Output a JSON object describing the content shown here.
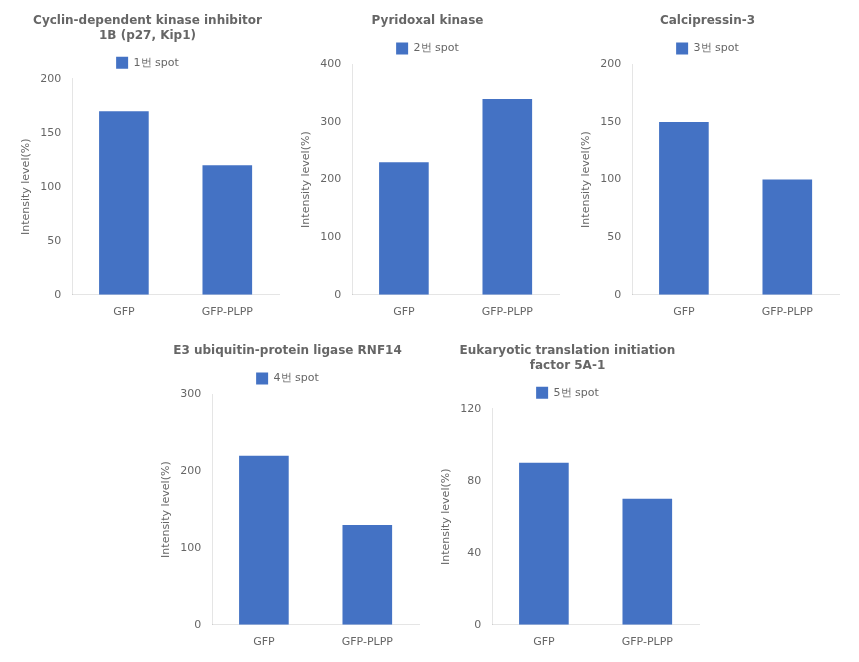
{
  "chart_data": [
    {
      "type": "bar",
      "title": "Cyclin-dependent kinase inhibitor\n1B (p27, Kip1)",
      "categories": [
        "GFP",
        "GFP-PLPP"
      ],
      "series": [
        {
          "name": "1번 spot",
          "color": "#4472c4",
          "values": [
            170,
            120
          ]
        }
      ],
      "ylabel": "Intensity level(%)",
      "ylim": [
        0,
        200
      ],
      "yticks": [
        0,
        50,
        100,
        150,
        200
      ],
      "grid": false,
      "legend": "top"
    },
    {
      "type": "bar",
      "title": "Pyridoxal kinase",
      "categories": [
        "GFP",
        "GFP-PLPP"
      ],
      "series": [
        {
          "name": "2번 spot",
          "color": "#4472c4",
          "values": [
            230,
            340
          ]
        }
      ],
      "ylabel": "Intensity level(%)",
      "ylim": [
        0,
        400
      ],
      "yticks": [
        0,
        100,
        200,
        300,
        400
      ],
      "grid": false,
      "legend": "top"
    },
    {
      "type": "bar",
      "title": "Calcipressin-3",
      "categories": [
        "GFP",
        "GFP-PLPP"
      ],
      "series": [
        {
          "name": "3번 spot",
          "color": "#4472c4",
          "values": [
            150,
            100
          ]
        }
      ],
      "ylabel": "Intensity level(%)",
      "ylim": [
        0,
        200
      ],
      "yticks": [
        0,
        50,
        100,
        150,
        200
      ],
      "grid": false,
      "legend": "top"
    },
    {
      "type": "bar",
      "title": "E3 ubiquitin-protein ligase RNF14",
      "categories": [
        "GFP",
        "GFP-PLPP"
      ],
      "series": [
        {
          "name": "4번 spot",
          "color": "#4472c4",
          "values": [
            220,
            130
          ]
        }
      ],
      "ylabel": "Intensity level(%)",
      "ylim": [
        0,
        300
      ],
      "yticks": [
        0,
        100,
        200,
        300
      ],
      "grid": false,
      "legend": "top"
    },
    {
      "type": "bar",
      "title": "Eukaryotic translation initiation\nfactor 5A-1",
      "categories": [
        "GFP",
        "GFP-PLPP"
      ],
      "series": [
        {
          "name": "5번 spot",
          "color": "#4472c4",
          "values": [
            90,
            70
          ]
        }
      ],
      "ylabel": "Intensity level(%)",
      "ylim": [
        0,
        120
      ],
      "yticks": [
        0,
        40,
        80,
        120
      ],
      "grid": false,
      "legend": "top"
    }
  ]
}
